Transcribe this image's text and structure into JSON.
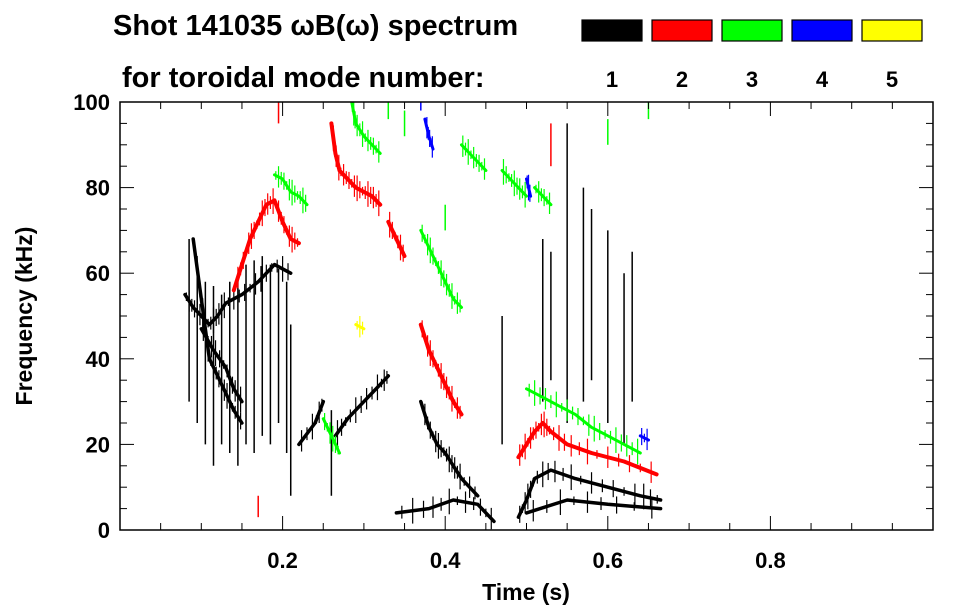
{
  "chart_data": {
    "type": "scatter",
    "title": "Shot 141035 ωB(ω) spectrum",
    "subtitle": "for toroidal mode number:",
    "xlabel": "Time (s)",
    "ylabel": "Frequency (kHz)",
    "xlim": [
      0.0,
      1.0
    ],
    "ylim": [
      0,
      100
    ],
    "x_ticks": [
      {
        "value": 0.2,
        "label": "0.2"
      },
      {
        "value": 0.4,
        "label": "0.4"
      },
      {
        "value": 0.6,
        "label": "0.6"
      },
      {
        "value": 0.8,
        "label": "0.8"
      }
    ],
    "y_ticks": [
      {
        "value": 0,
        "label": "0"
      },
      {
        "value": 20,
        "label": "20"
      },
      {
        "value": 40,
        "label": "40"
      },
      {
        "value": 60,
        "label": "60"
      },
      {
        "value": 80,
        "label": "80"
      },
      {
        "value": 100,
        "label": "100"
      }
    ],
    "grid": false,
    "legend_placement": "top-right",
    "series": [
      {
        "name": "1",
        "color": "#000000",
        "width": 3.5,
        "paths": [
          [
            [
              0.08,
              55
            ],
            [
              0.09,
              52
            ],
            [
              0.1,
              50
            ],
            [
              0.11,
              48
            ],
            [
              0.12,
              50
            ],
            [
              0.13,
              53
            ],
            [
              0.15,
              55
            ],
            [
              0.17,
              58
            ],
            [
              0.19,
              62
            ],
            [
              0.21,
              60
            ]
          ],
          [
            [
              0.09,
              68
            ],
            [
              0.1,
              54
            ],
            [
              0.11,
              40
            ],
            [
              0.12,
              36
            ],
            [
              0.13,
              32
            ],
            [
              0.14,
              28
            ],
            [
              0.15,
              25
            ]
          ],
          [
            [
              0.1,
              47
            ],
            [
              0.115,
              42
            ],
            [
              0.13,
              38
            ],
            [
              0.14,
              33
            ],
            [
              0.15,
              30
            ]
          ],
          [
            [
              0.22,
              20
            ],
            [
              0.24,
              25
            ],
            [
              0.25,
              30
            ]
          ],
          [
            [
              0.265,
              22
            ],
            [
              0.28,
              26
            ],
            [
              0.3,
              30
            ],
            [
              0.32,
              34
            ],
            [
              0.33,
              36
            ]
          ],
          [
            [
              0.37,
              30
            ],
            [
              0.38,
              24
            ],
            [
              0.39,
              20
            ],
            [
              0.4,
              18
            ],
            [
              0.41,
              15
            ],
            [
              0.42,
              12
            ],
            [
              0.44,
              8
            ]
          ],
          [
            [
              0.34,
              4
            ],
            [
              0.38,
              5
            ],
            [
              0.41,
              7
            ],
            [
              0.44,
              6
            ],
            [
              0.46,
              2
            ]
          ],
          [
            [
              0.49,
              3
            ],
            [
              0.5,
              7
            ],
            [
              0.51,
              12
            ],
            [
              0.53,
              14
            ],
            [
              0.56,
              12
            ],
            [
              0.6,
              10
            ],
            [
              0.64,
              8
            ],
            [
              0.665,
              7
            ]
          ],
          [
            [
              0.5,
              4
            ],
            [
              0.55,
              7
            ],
            [
              0.6,
              6
            ],
            [
              0.665,
              5
            ]
          ]
        ],
        "strokes": [
          [
            0.085,
            30,
            68
          ],
          [
            0.095,
            25,
            62
          ],
          [
            0.105,
            20,
            58
          ],
          [
            0.115,
            15,
            57
          ],
          [
            0.125,
            20,
            55
          ],
          [
            0.135,
            18,
            58
          ],
          [
            0.145,
            15,
            60
          ],
          [
            0.155,
            20,
            62
          ],
          [
            0.165,
            18,
            63
          ],
          [
            0.175,
            22,
            64
          ],
          [
            0.185,
            20,
            62
          ],
          [
            0.195,
            25,
            61
          ],
          [
            0.205,
            18,
            58
          ],
          [
            0.21,
            8,
            48
          ],
          [
            0.26,
            8,
            28
          ],
          [
            0.47,
            20,
            50
          ],
          [
            0.52,
            30,
            68
          ],
          [
            0.53,
            35,
            65
          ],
          [
            0.55,
            25,
            95
          ],
          [
            0.57,
            30,
            80
          ],
          [
            0.58,
            35,
            75
          ],
          [
            0.6,
            25,
            70
          ],
          [
            0.62,
            20,
            60
          ],
          [
            0.63,
            30,
            65
          ]
        ]
      },
      {
        "name": "2",
        "color": "#ff0000",
        "width": 4,
        "paths": [
          [
            [
              0.14,
              56
            ],
            [
              0.15,
              62
            ],
            [
              0.16,
              68
            ],
            [
              0.17,
              72
            ],
            [
              0.18,
              76
            ],
            [
              0.19,
              77
            ],
            [
              0.2,
              72
            ],
            [
              0.21,
              68
            ],
            [
              0.22,
              67
            ]
          ],
          [
            [
              0.26,
              95
            ],
            [
              0.265,
              88
            ],
            [
              0.27,
              84
            ],
            [
              0.28,
              82
            ],
            [
              0.29,
              80
            ],
            [
              0.3,
              79
            ],
            [
              0.31,
              78
            ],
            [
              0.32,
              76
            ]
          ],
          [
            [
              0.37,
              48
            ],
            [
              0.38,
              42
            ],
            [
              0.39,
              38
            ],
            [
              0.4,
              34
            ],
            [
              0.41,
              30
            ],
            [
              0.42,
              27
            ]
          ],
          [
            [
              0.49,
              17
            ],
            [
              0.5,
              20
            ],
            [
              0.51,
              23
            ],
            [
              0.52,
              25
            ],
            [
              0.53,
              23
            ],
            [
              0.55,
              20
            ],
            [
              0.58,
              18
            ],
            [
              0.62,
              16
            ],
            [
              0.66,
              13
            ]
          ],
          [
            [
              0.33,
              72
            ],
            [
              0.34,
              68
            ],
            [
              0.35,
              64
            ]
          ]
        ],
        "strokes": [
          [
            0.195,
            95,
            100
          ],
          [
            0.53,
            85,
            95
          ],
          [
            0.17,
            3,
            8
          ]
        ]
      },
      {
        "name": "3",
        "color": "#00ff00",
        "width": 3,
        "paths": [
          [
            [
              0.19,
              83
            ],
            [
              0.2,
              82
            ],
            [
              0.21,
              79
            ],
            [
              0.22,
              78
            ],
            [
              0.23,
              76
            ]
          ],
          [
            [
              0.285,
              100
            ],
            [
              0.29,
              95
            ],
            [
              0.3,
              92
            ],
            [
              0.31,
              90
            ],
            [
              0.32,
              88
            ]
          ],
          [
            [
              0.37,
              70
            ],
            [
              0.38,
              66
            ],
            [
              0.39,
              62
            ],
            [
              0.4,
              58
            ],
            [
              0.41,
              54
            ],
            [
              0.42,
              52
            ]
          ],
          [
            [
              0.42,
              90
            ],
            [
              0.43,
              88
            ],
            [
              0.44,
              86
            ],
            [
              0.45,
              84
            ]
          ],
          [
            [
              0.47,
              84
            ],
            [
              0.48,
              82
            ],
            [
              0.49,
              80
            ],
            [
              0.5,
              78
            ]
          ],
          [
            [
              0.51,
              80
            ],
            [
              0.52,
              78
            ],
            [
              0.53,
              76
            ]
          ],
          [
            [
              0.5,
              33
            ],
            [
              0.52,
              31
            ],
            [
              0.54,
              29
            ],
            [
              0.56,
              27
            ],
            [
              0.58,
              24
            ],
            [
              0.6,
              22
            ],
            [
              0.62,
              20
            ],
            [
              0.64,
              18
            ]
          ],
          [
            [
              0.25,
              26
            ],
            [
              0.26,
              22
            ],
            [
              0.27,
              18
            ]
          ]
        ],
        "strokes": [
          [
            0.33,
            96,
            100
          ],
          [
            0.35,
            92,
            98
          ],
          [
            0.6,
            90,
            96
          ],
          [
            0.65,
            96,
            100
          ],
          [
            0.4,
            70,
            76
          ]
        ]
      },
      {
        "name": "4",
        "color": "#0000ff",
        "width": 3,
        "paths": [
          [
            [
              0.375,
              96
            ],
            [
              0.38,
              92
            ],
            [
              0.385,
              89
            ]
          ],
          [
            [
              0.5,
              82
            ],
            [
              0.505,
              78
            ]
          ],
          [
            [
              0.64,
              22
            ],
            [
              0.65,
              21
            ]
          ]
        ],
        "strokes": [
          [
            0.37,
            98,
            100
          ]
        ]
      },
      {
        "name": "5",
        "color": "#ffff00",
        "width": 3,
        "paths": [
          [
            [
              0.29,
              48
            ],
            [
              0.3,
              47
            ]
          ]
        ],
        "strokes": []
      }
    ]
  }
}
